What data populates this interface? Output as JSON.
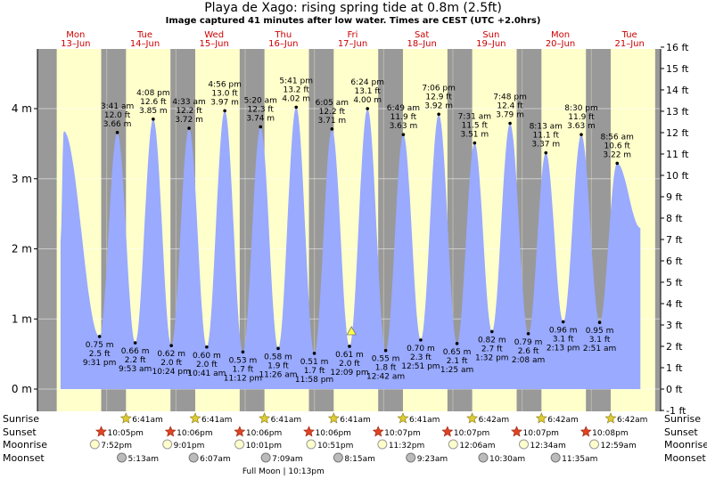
{
  "header": {
    "title": "Playa de Xago: rising  spring tide at 0.8m (2.5ft)",
    "subtitle": "Image captured 41 minutes after low water. Times are CEST (UTC +2.0hrs)"
  },
  "days": [
    {
      "dow": "Mon",
      "date": "13–Jun"
    },
    {
      "dow": "Tue",
      "date": "14–Jun"
    },
    {
      "dow": "Wed",
      "date": "15–Jun"
    },
    {
      "dow": "Thu",
      "date": "16–Jun"
    },
    {
      "dow": "Fri",
      "date": "17–Jun"
    },
    {
      "dow": "Sat",
      "date": "18–Jun"
    },
    {
      "dow": "Sun",
      "date": "19–Jun"
    },
    {
      "dow": "Mon",
      "date": "20–Jun"
    },
    {
      "dow": "Tue",
      "date": "21–Jun"
    }
  ],
  "chart_data": {
    "type": "area",
    "title": "Playa de Xago: rising  spring tide at 0.8m (2.5ft)",
    "x_unit": "hours from 13-Jun 00:00 CEST",
    "xlim": [
      0,
      216
    ],
    "ylim": [
      -0.3,
      5.0
    ],
    "y_unit": "m",
    "left_ticks_m": [
      "0 m",
      "1 m",
      "2 m",
      "3 m",
      "4 m"
    ],
    "right_ticks_ft": [
      "-1 ft",
      "0 ft",
      "1 ft",
      "2 ft",
      "3 ft",
      "4 ft",
      "5 ft",
      "6 ft",
      "7 ft",
      "8 ft",
      "9 ft",
      "10 ft",
      "11 ft",
      "12 ft",
      "13 ft",
      "14 ft",
      "15 ft",
      "16 ft"
    ],
    "data_start_h": 8.0,
    "data_end_h": 209.0,
    "start_level_m": 2.1,
    "end_level_m": 2.3,
    "first_high": {
      "t": 9.1,
      "h": 3.68
    },
    "extremes": [
      {
        "type": "low",
        "t": 21.52,
        "h": 0.75,
        "m": "0.75 m",
        "ft": "2.5 ft",
        "time": "9:31 pm"
      },
      {
        "type": "high",
        "t": 27.68,
        "h": 3.66,
        "m": "3.66 m",
        "ft": "12.0 ft",
        "time": "3:41 am"
      },
      {
        "type": "low",
        "t": 33.88,
        "h": 0.66,
        "m": "0.66 m",
        "ft": "2.2 ft",
        "time": "9:53 am"
      },
      {
        "type": "high",
        "t": 40.13,
        "h": 3.85,
        "m": "3.85 m",
        "ft": "12.6 ft",
        "time": "4:08 pm"
      },
      {
        "type": "low",
        "t": 46.4,
        "h": 0.62,
        "m": "0.62 m",
        "ft": "2.0 ft",
        "time": "10:24 pm"
      },
      {
        "type": "high",
        "t": 52.55,
        "h": 3.72,
        "m": "3.72 m",
        "ft": "12.2 ft",
        "time": "4:33 am"
      },
      {
        "type": "low",
        "t": 58.68,
        "h": 0.6,
        "m": "0.60 m",
        "ft": "2.0 ft",
        "time": "10:41 am"
      },
      {
        "type": "high",
        "t": 64.93,
        "h": 3.97,
        "m": "3.97 m",
        "ft": "13.0 ft",
        "time": "4:56 pm"
      },
      {
        "type": "low",
        "t": 71.2,
        "h": 0.53,
        "m": "0.53 m",
        "ft": "1.7 ft",
        "time": "11:12 pm"
      },
      {
        "type": "high",
        "t": 77.33,
        "h": 3.74,
        "m": "3.74 m",
        "ft": "12.3 ft",
        "time": "5:20 am"
      },
      {
        "type": "low",
        "t": 83.43,
        "h": 0.58,
        "m": "0.58 m",
        "ft": "1.9 ft",
        "time": "11:26 am"
      },
      {
        "type": "high",
        "t": 89.68,
        "h": 4.02,
        "m": "4.02 m",
        "ft": "13.2 ft",
        "time": "5:41 pm"
      },
      {
        "type": "low",
        "t": 95.97,
        "h": 0.51,
        "m": "0.51 m",
        "ft": "1.7 ft",
        "time": "11:58 pm"
      },
      {
        "type": "high",
        "t": 102.08,
        "h": 3.71,
        "m": "3.71 m",
        "ft": "12.2 ft",
        "time": "6:05 am"
      },
      {
        "type": "low",
        "t": 108.15,
        "h": 0.61,
        "m": "0.61 m",
        "ft": "2.0 ft",
        "time": "12:09 pm"
      },
      {
        "type": "high",
        "t": 114.4,
        "h": 4.0,
        "m": "4.00 m",
        "ft": "13.1 ft",
        "time": "6:24 pm"
      },
      {
        "type": "low",
        "t": 120.7,
        "h": 0.55,
        "m": "0.55 m",
        "ft": "1.8 ft",
        "time": "12:42 am"
      },
      {
        "type": "high",
        "t": 126.82,
        "h": 3.63,
        "m": "3.63 m",
        "ft": "11.9 ft",
        "time": "6:49 am"
      },
      {
        "type": "low",
        "t": 132.85,
        "h": 0.7,
        "m": "0.70 m",
        "ft": "2.3 ft",
        "time": "12:51 pm"
      },
      {
        "type": "high",
        "t": 139.1,
        "h": 3.92,
        "m": "3.92 m",
        "ft": "12.9 ft",
        "time": "7:06 pm"
      },
      {
        "type": "low",
        "t": 145.42,
        "h": 0.65,
        "m": "0.65 m",
        "ft": "2.1 ft",
        "time": "1:25 am"
      },
      {
        "type": "high",
        "t": 151.52,
        "h": 3.51,
        "m": "3.51 m",
        "ft": "11.5 ft",
        "time": "7:31 am"
      },
      {
        "type": "low",
        "t": 157.53,
        "h": 0.82,
        "m": "0.82 m",
        "ft": "2.7 ft",
        "time": "1:32 pm"
      },
      {
        "type": "high",
        "t": 163.8,
        "h": 3.79,
        "m": "3.79 m",
        "ft": "12.4 ft",
        "time": "7:48 pm"
      },
      {
        "type": "low",
        "t": 170.13,
        "h": 0.79,
        "m": "0.79 m",
        "ft": "2.6 ft",
        "time": "2:08 am"
      },
      {
        "type": "high",
        "t": 176.22,
        "h": 3.37,
        "m": "3.37 m",
        "ft": "11.1 ft",
        "time": "8:13 am"
      },
      {
        "type": "low",
        "t": 182.22,
        "h": 0.96,
        "m": "0.96 m",
        "ft": "3.1 ft",
        "time": "2:13 pm"
      },
      {
        "type": "high",
        "t": 188.5,
        "h": 3.63,
        "m": "3.63 m",
        "ft": "11.9 ft",
        "time": "8:30 pm"
      },
      {
        "type": "low",
        "t": 194.85,
        "h": 0.95,
        "m": "0.95 m",
        "ft": "3.1 ft",
        "time": "2:51 am"
      },
      {
        "type": "high",
        "t": 200.93,
        "h": 3.22,
        "m": "3.22 m",
        "ft": "10.6 ft",
        "time": "8:56 am"
      }
    ],
    "now_marker": {
      "t": 108.85,
      "h": 0.8
    },
    "astronomy": {
      "labels": [
        "Sunrise",
        "Sunset",
        "Moonrise",
        "Moonset"
      ],
      "sunrise": [
        "6:41am",
        "6:41am",
        "6:41am",
        "6:41am",
        "6:41am",
        "6:42am",
        "6:42am",
        "6:42am"
      ],
      "sunset": [
        "10:05pm",
        "10:06pm",
        "10:06pm",
        "10:06pm",
        "10:07pm",
        "10:07pm",
        "10:07pm",
        "10:08pm"
      ],
      "moonrise": [
        "7:52pm",
        "9:01pm",
        "10:01pm",
        "10:51pm",
        "11:32pm",
        "12:06am",
        "12:34am",
        "12:59am"
      ],
      "moonset": [
        "5:13am",
        "6:07am",
        "7:09am",
        "8:15am",
        "9:23am",
        "10:30am",
        "11:35am"
      ],
      "full_moon": "Full Moon | 10:13pm"
    }
  }
}
